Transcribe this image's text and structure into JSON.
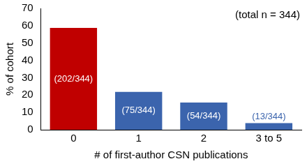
{
  "chart_data": {
    "type": "bar",
    "categories": [
      "0",
      "1",
      "2",
      "3 to 5"
    ],
    "values": [
      58.7,
      21.8,
      15.7,
      3.8
    ],
    "value_labels": [
      "(202/344)",
      "(75/344)",
      "(54/344)",
      "(13/344)"
    ],
    "colors": [
      "#c00000",
      "#3b64ad",
      "#3b64ad",
      "#3b64ad"
    ],
    "x_label": "# of first-author CSN publications",
    "y_label": "% of cohort",
    "annotation": "(total n = 344)",
    "ylim": [
      0,
      70
    ],
    "yticks": [
      0,
      10,
      20,
      30,
      40,
      50,
      60,
      70
    ],
    "grid": false,
    "data_labels": true
  }
}
